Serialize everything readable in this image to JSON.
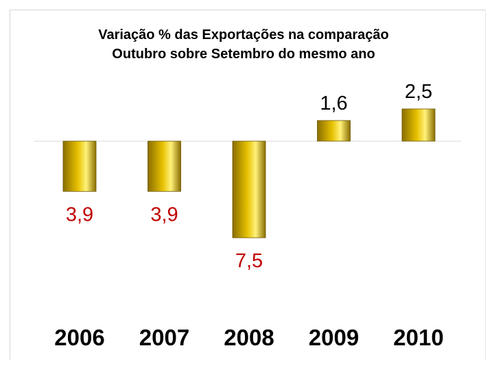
{
  "chart_data": {
    "type": "bar",
    "title": [
      "Variação % das Exportações na comparação",
      "Outubro sobre Setembro do mesmo ano"
    ],
    "categories": [
      "2006",
      "2007",
      "2008",
      "2009",
      "2010"
    ],
    "values": [
      -3.9,
      -3.9,
      -7.5,
      1.6,
      2.5
    ],
    "value_labels": [
      "3,9",
      "3,9",
      "7,5",
      "1,6",
      "2,5"
    ],
    "xlabel": "",
    "ylabel": "",
    "ylim": [
      -7.5,
      2.5
    ],
    "grid": false,
    "legend": "none"
  },
  "colors": {
    "bar_dark": "#8a6e00",
    "bar_mid": "#e7c100",
    "bar_light": "#fff27a",
    "bar_edge": "#6b5400",
    "negative_label": "#c00000",
    "positive_label": "#000000",
    "baseline": "#d9d9d9"
  }
}
